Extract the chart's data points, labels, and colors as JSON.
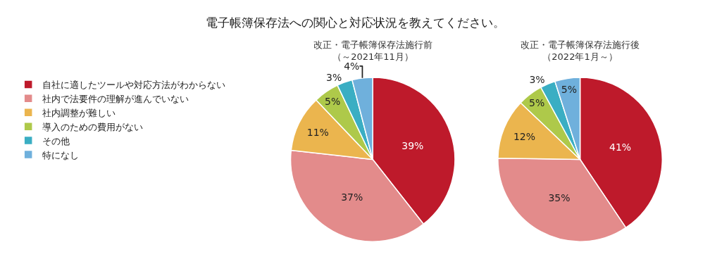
{
  "chart_data": {
    "type": "pie",
    "title": "電子帳簿保存法への関心と対応状況を教えてください。",
    "legend": "left",
    "categories": [
      "自社に適したツールや対応方法がわからない",
      "社内で法要件の理解が進んでいない",
      "社内調整が難しい",
      "導入のための費用がない",
      "その他",
      "特になし"
    ],
    "colors": [
      "#be1a2b",
      "#e38b8b",
      "#ebb54e",
      "#aec94a",
      "#3aaec3",
      "#6fb0dc"
    ],
    "series": [
      {
        "name": "改正・電子帳簿保存法施行前（～2021年11月）",
        "values": [
          39,
          37,
          11,
          5,
          3,
          4
        ],
        "value_labels": [
          "39%",
          "37%",
          "11%",
          "5%",
          "3%",
          "4%"
        ]
      },
      {
        "name": "改正・電子帳簿保存法施行後（2022年1月～）",
        "values": [
          41,
          35,
          12,
          5,
          3,
          5
        ],
        "value_labels": [
          "41%",
          "35%",
          "12%",
          "5%",
          "3%",
          "5%"
        ]
      }
    ]
  }
}
